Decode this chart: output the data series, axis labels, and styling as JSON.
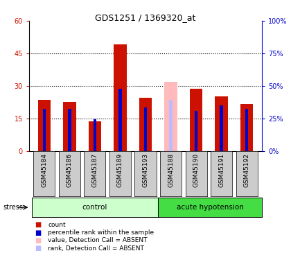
{
  "title": "GDS1251 / 1369320_at",
  "samples": [
    "GSM45184",
    "GSM45186",
    "GSM45187",
    "GSM45189",
    "GSM45193",
    "GSM45188",
    "GSM45190",
    "GSM45191",
    "GSM45192"
  ],
  "count_values": [
    23.5,
    22.5,
    13.5,
    49.0,
    24.5,
    0,
    28.5,
    25.0,
    21.5
  ],
  "rank_values": [
    19.5,
    19.5,
    14.5,
    28.5,
    20.0,
    0,
    18.5,
    21.0,
    19.5
  ],
  "absent_count_values": [
    0,
    0,
    0,
    0,
    0,
    32.0,
    0,
    0,
    0
  ],
  "absent_rank_values": [
    0,
    0,
    0,
    0,
    0,
    23.5,
    0,
    0,
    0
  ],
  "ylim_left": [
    0,
    60
  ],
  "ylim_right": [
    0,
    100
  ],
  "yticks_left": [
    0,
    15,
    30,
    45,
    60
  ],
  "yticks_right": [
    0,
    25,
    50,
    75,
    100
  ],
  "ytick_labels_left": [
    "0",
    "15",
    "30",
    "45",
    "60"
  ],
  "ytick_labels_right": [
    "0%",
    "25%",
    "50%",
    "75%",
    "100%"
  ],
  "color_count": "#cc1100",
  "color_rank": "#0000cc",
  "color_absent_count": "#ffbbbb",
  "color_absent_rank": "#bbbbff",
  "color_group_control_light": "#ccffcc",
  "color_group_control_dark": "#44cc44",
  "color_group_acute_light": "#66dd66",
  "color_group_acute_dark": "#22bb22",
  "group_label_control": "control",
  "group_label_acute": "acute hypotension",
  "legend_items": [
    {
      "color": "#cc1100",
      "label": "count"
    },
    {
      "color": "#0000cc",
      "label": "percentile rank within the sample"
    },
    {
      "color": "#ffbbbb",
      "label": "value, Detection Call = ABSENT"
    },
    {
      "color": "#bbbbff",
      "label": "rank, Detection Call = ABSENT"
    }
  ],
  "stress_label": "stress",
  "bar_width": 0.5,
  "rank_bar_width": 0.12,
  "n_control": 5,
  "n_acute": 4
}
